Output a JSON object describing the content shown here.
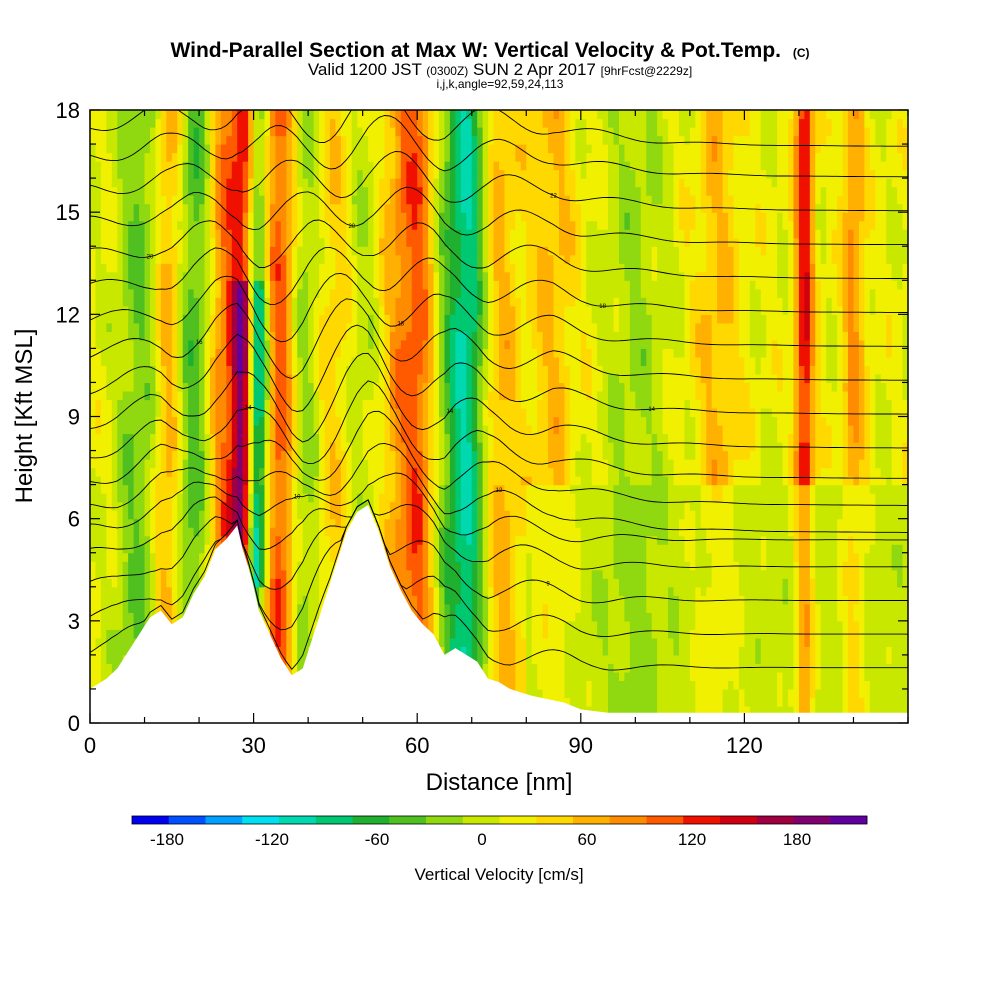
{
  "chart_data": {
    "type": "heatmap",
    "title": "Wind-Parallel Section at Max W: Vertical Velocity & Pot.Temp.",
    "title_mark": "(C)",
    "subtitle_parts": [
      "Valid 1200 JST ",
      "(0300Z)",
      " SUN 2 Apr 2017 ",
      "[9hrFcst@2229z]"
    ],
    "subtitle2": "i,j,k,angle=92,59,24,113",
    "xlabel": "Distance [nm]",
    "ylabel": "Height [Kft MSL]",
    "xlim": [
      0,
      150
    ],
    "ylim": [
      0,
      18
    ],
    "xticks": [
      0,
      30,
      60,
      90,
      120
    ],
    "yticks": [
      0,
      3,
      6,
      9,
      12,
      15,
      18
    ],
    "colorbar": {
      "label": "Vertical Velocity [cm/s]",
      "ticks": [
        -180,
        -120,
        -60,
        0,
        60,
        120,
        180
      ],
      "range": [
        -200,
        220
      ],
      "colors": [
        "#0000f0",
        "#0050ff",
        "#00a0ff",
        "#00e0f0",
        "#00d8b0",
        "#00c870",
        "#20b030",
        "#50c020",
        "#90d810",
        "#c8e800",
        "#f0f000",
        "#ffd800",
        "#ffb000",
        "#ff8c00",
        "#ff5a00",
        "#f01000",
        "#d00010",
        "#a00040",
        "#800070",
        "#6000a0"
      ]
    },
    "terrain": {
      "x": [
        0,
        3,
        5,
        7,
        9,
        11,
        13,
        15,
        17,
        19,
        21,
        23,
        25,
        27,
        28,
        29,
        30,
        31,
        33,
        35,
        37,
        39,
        41,
        43,
        45,
        47,
        49,
        51,
        53,
        55,
        57,
        59,
        61,
        63,
        65,
        67,
        69,
        71,
        73,
        75,
        77,
        79,
        81,
        84,
        87,
        90,
        95,
        100,
        110,
        120,
        130,
        140,
        150
      ],
      "height_kft": [
        1.0,
        1.3,
        1.6,
        2.1,
        2.6,
        3.1,
        3.3,
        2.9,
        3.1,
        3.8,
        4.3,
        5.1,
        5.4,
        5.8,
        5.1,
        4.6,
        4.0,
        3.3,
        2.6,
        1.9,
        1.4,
        1.6,
        2.6,
        3.6,
        4.6,
        5.6,
        6.2,
        6.4,
        5.6,
        4.6,
        3.9,
        3.3,
        2.9,
        2.6,
        2.0,
        2.2,
        2.0,
        1.8,
        1.3,
        1.2,
        1.0,
        0.9,
        0.8,
        0.7,
        0.6,
        0.4,
        0.3,
        0.3,
        0.3,
        0.3,
        0.3,
        0.3,
        0.3
      ]
    },
    "features": [
      {
        "x": 9,
        "width": 3,
        "w_cms": -50
      },
      {
        "x": 14,
        "width": 2,
        "w_cms": 70
      },
      {
        "x": 19,
        "width": 3,
        "w_cms": -70
      },
      {
        "x": 24,
        "width": 2.5,
        "w_cms": 90
      },
      {
        "x": 28,
        "width": 1.5,
        "w_cms": 210
      },
      {
        "x": 30,
        "width": 1.6,
        "w_cms": -200
      },
      {
        "x": 35,
        "width": 2.5,
        "w_cms": 120
      },
      {
        "x": 39,
        "width": 3,
        "w_cms": -80
      },
      {
        "x": 44,
        "width": 3.5,
        "w_cms": 60
      },
      {
        "x": 50,
        "width": 4,
        "w_cms": -40
      },
      {
        "x": 56,
        "width": 3,
        "w_cms": 60
      },
      {
        "x": 61,
        "width": 2.5,
        "w_cms": 90
      },
      {
        "x": 65,
        "width": 3,
        "w_cms": -60
      },
      {
        "x": 70,
        "width": 2.5,
        "w_cms": -110
      },
      {
        "x": 74,
        "width": 3,
        "w_cms": 60
      },
      {
        "x": 85,
        "width": 3,
        "w_cms": 40
      },
      {
        "x": 100,
        "width": 4,
        "w_cms": -30
      },
      {
        "x": 115,
        "width": 3,
        "w_cms": 40
      },
      {
        "x": 131,
        "width": 1.2,
        "w_cms": 120
      },
      {
        "x": 140,
        "width": 1.5,
        "w_cms": 60
      }
    ],
    "isentropes": [
      {
        "base_kft": 1.6,
        "label": ""
      },
      {
        "base_kft": 2.6,
        "label": ""
      },
      {
        "base_kft": 3.6,
        "label": "9"
      },
      {
        "base_kft": 4.6,
        "label": ""
      },
      {
        "base_kft": 5.4,
        "label": "10"
      },
      {
        "base_kft": 6.1,
        "label": "12"
      },
      {
        "base_kft": 6.9,
        "label": ""
      },
      {
        "base_kft": 7.7,
        "label": "14"
      },
      {
        "base_kft": 8.6,
        "label": "14"
      },
      {
        "base_kft": 9.6,
        "label": "14"
      },
      {
        "base_kft": 10.6,
        "label": "16"
      },
      {
        "base_kft": 11.6,
        "label": "18"
      },
      {
        "base_kft": 12.6,
        "label": "18"
      },
      {
        "base_kft": 13.6,
        "label": "20"
      },
      {
        "base_kft": 14.6,
        "label": "20"
      },
      {
        "base_kft": 15.6,
        "label": "22"
      },
      {
        "base_kft": 16.6,
        "label": ""
      },
      {
        "base_kft": 17.5,
        "label": ""
      }
    ]
  }
}
